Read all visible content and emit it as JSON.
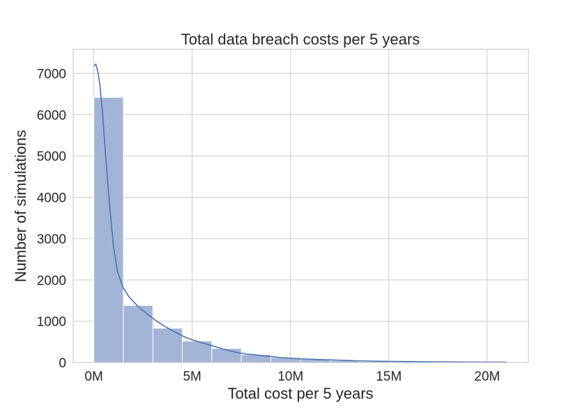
{
  "chart_data": {
    "type": "bar",
    "subtype": "histogram-with-kde",
    "title": "Total data breach costs per 5 years",
    "xlabel": "Total cost per 5 years",
    "ylabel": "Number of simulations",
    "xlim": [
      -1.05,
      22.1
    ],
    "ylim": [
      0,
      7580
    ],
    "x_unit": "millions",
    "xticks": [
      0,
      5,
      10,
      15,
      20
    ],
    "xtick_labels": [
      "0M",
      "5M",
      "10M",
      "15M",
      "20M"
    ],
    "yticks": [
      0,
      1000,
      2000,
      3000,
      4000,
      5000,
      6000,
      7000
    ],
    "ytick_labels": [
      "0",
      "1000",
      "2000",
      "3000",
      "4000",
      "5000",
      "6000",
      "7000"
    ],
    "grid": true,
    "bar_color": "#a3b5d6",
    "line_color": "#4c72b0",
    "bins": [
      {
        "x0": 0.0,
        "x1": 1.5,
        "count": 6420
      },
      {
        "x0": 1.5,
        "x1": 3.0,
        "count": 1380
      },
      {
        "x0": 3.0,
        "x1": 4.5,
        "count": 830
      },
      {
        "x0": 4.5,
        "x1": 6.0,
        "count": 520
      },
      {
        "x0": 6.0,
        "x1": 7.5,
        "count": 340
      },
      {
        "x0": 7.5,
        "x1": 9.0,
        "count": 190
      },
      {
        "x0": 9.0,
        "x1": 10.5,
        "count": 120
      },
      {
        "x0": 10.5,
        "x1": 12.0,
        "count": 80
      },
      {
        "x0": 12.0,
        "x1": 13.5,
        "count": 45
      },
      {
        "x0": 13.5,
        "x1": 15.0,
        "count": 25
      },
      {
        "x0": 15.0,
        "x1": 16.5,
        "count": 15
      },
      {
        "x0": 16.5,
        "x1": 18.0,
        "count": 10
      },
      {
        "x0": 18.0,
        "x1": 19.5,
        "count": 6
      },
      {
        "x0": 19.5,
        "x1": 21.0,
        "count": 4
      }
    ],
    "kde": {
      "x": [
        0.0,
        0.1,
        0.2,
        0.3,
        0.45,
        0.6,
        0.8,
        1.0,
        1.2,
        1.5,
        1.8,
        2.2,
        2.7,
        3.2,
        3.7,
        4.2,
        4.7,
        5.2,
        5.7,
        6.2,
        6.7,
        7.2,
        7.7,
        8.5,
        9.5,
        10.5,
        11.5,
        12.5,
        13.5,
        14.5,
        15.5,
        16.5,
        17.5,
        18.5,
        19.5,
        20.5,
        21.0
      ],
      "y": [
        7180,
        7220,
        7050,
        6750,
        6000,
        5000,
        3800,
        2800,
        2200,
        1800,
        1580,
        1380,
        1180,
        1000,
        850,
        720,
        600,
        520,
        450,
        380,
        310,
        250,
        210,
        170,
        120,
        90,
        70,
        55,
        40,
        30,
        25,
        20,
        17,
        14,
        12,
        10,
        9
      ]
    }
  }
}
